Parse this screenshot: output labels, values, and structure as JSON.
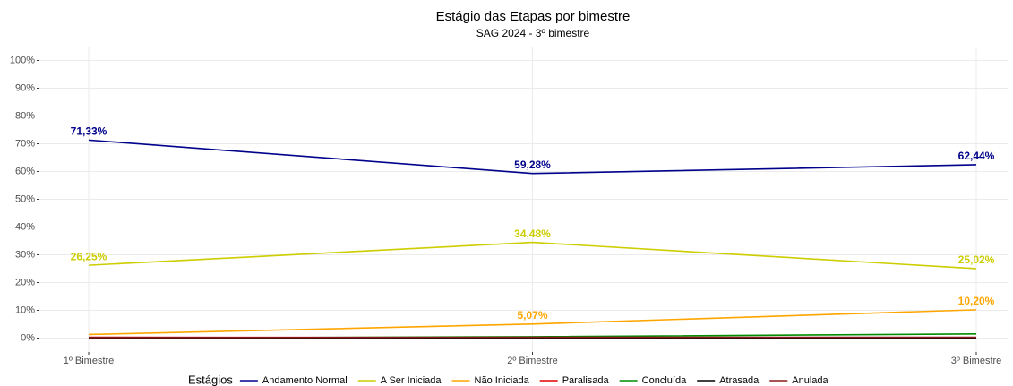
{
  "chart_data": {
    "type": "line",
    "title": "Estágio das Etapas por bimestre",
    "subtitle": "SAG 2024 - 3º bimestre",
    "legend_title": "Estágios",
    "legend": "bottom",
    "grid": true,
    "categories": [
      "1º Bimestre",
      "2º Bimestre",
      "3º Bimestre"
    ],
    "ylim": [
      -5,
      105
    ],
    "yticks": [
      {
        "value": 0,
        "label": "0%"
      },
      {
        "value": 10,
        "label": "10%"
      },
      {
        "value": 20,
        "label": "20%"
      },
      {
        "value": 30,
        "label": "30%"
      },
      {
        "value": 40,
        "label": "40%"
      },
      {
        "value": 50,
        "label": "50%"
      },
      {
        "value": 60,
        "label": "60%"
      },
      {
        "value": 70,
        "label": "70%"
      },
      {
        "value": 80,
        "label": "80%"
      },
      {
        "value": 90,
        "label": "90%"
      },
      {
        "value": 100,
        "label": "100%"
      }
    ],
    "series": [
      {
        "name": "Andamento Normal",
        "color": "#00008b",
        "values": [
          71.33,
          59.28,
          62.44
        ],
        "value_labels": [
          "71,33%",
          "59,28%",
          "62,44%"
        ]
      },
      {
        "name": "A Ser Iniciada",
        "color": "#cdcd00",
        "values": [
          26.25,
          34.48,
          25.02
        ],
        "value_labels": [
          "26,25%",
          "34,48%",
          "25,02%"
        ]
      },
      {
        "name": "Não Iniciada",
        "color": "#ffa500",
        "values": [
          1.3,
          5.07,
          10.2
        ],
        "value_labels": [
          null,
          "5,07%",
          "10,20%"
        ]
      },
      {
        "name": "Paralisada",
        "color": "#e00000",
        "values": [
          0.3,
          0.2,
          0.2
        ]
      },
      {
        "name": "Concluída",
        "color": "#008b00",
        "values": [
          0,
          0.5,
          1.5
        ]
      },
      {
        "name": "Atrasada",
        "color": "#000000",
        "values": [
          0,
          0,
          0.1
        ]
      },
      {
        "name": "Anulada",
        "color": "#8b1a1a",
        "values": [
          0.2,
          0.3,
          0.3
        ]
      }
    ]
  }
}
